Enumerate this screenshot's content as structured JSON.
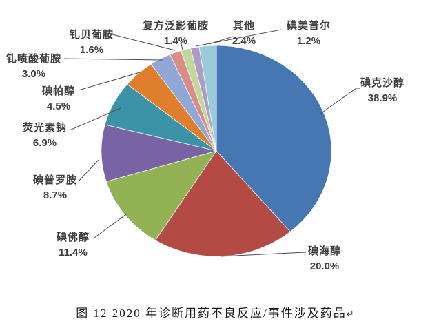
{
  "figure": {
    "caption": {
      "text": "图 12  2020 年诊断用药不良反应/事件涉及药品",
      "paragraph_mark": "↵"
    }
  },
  "chart_data": {
    "type": "pie",
    "title": "2020 年诊断用药不良反应/事件涉及药品",
    "unit": "%",
    "start_angle_deg": 0,
    "direction": "clockwise",
    "legend_position": "none",
    "label_style": "category name and percent outside pie with leader lines",
    "categories": [
      "碘克沙醇",
      "碘海醇",
      "碘佛醇",
      "碘普罗胺",
      "荧光素钠",
      "碘帕醇",
      "钆喷酸葡胺",
      "钆贝葡胺",
      "复方泛影葡胺",
      "碘美普尔",
      "其他"
    ],
    "values": [
      38.9,
      20.0,
      11.4,
      8.7,
      6.9,
      4.5,
      3.0,
      1.6,
      1.4,
      1.2,
      2.4
    ],
    "slices": [
      {
        "name": "碘克沙醇",
        "value": 38.9,
        "pct_text": "38.9%",
        "color": "#4677B2"
      },
      {
        "name": "碘海醇",
        "value": 20.0,
        "pct_text": "20.0%",
        "color": "#B34A44"
      },
      {
        "name": "碘佛醇",
        "value": 11.4,
        "pct_text": "11.4%",
        "color": "#92B254"
      },
      {
        "name": "碘普罗胺",
        "value": 8.7,
        "pct_text": "8.7%",
        "color": "#7A63A4"
      },
      {
        "name": "荧光素钠",
        "value": 6.9,
        "pct_text": "6.9%",
        "color": "#3B93A8"
      },
      {
        "name": "碘帕醇",
        "value": 4.5,
        "pct_text": "4.5%",
        "color": "#DF7F2D"
      },
      {
        "name": "钆喷酸葡胺",
        "value": 3.0,
        "pct_text": "3.0%",
        "color": "#90A7D8"
      },
      {
        "name": "钆贝葡胺",
        "value": 1.6,
        "pct_text": "1.6%",
        "color": "#D98D87"
      },
      {
        "name": "复方泛影葡胺",
        "value": 1.4,
        "pct_text": "1.4%",
        "color": "#C2D79A"
      },
      {
        "name": "碘美普尔",
        "value": 1.2,
        "pct_text": "1.2%",
        "color": "#AC9CC6"
      },
      {
        "name": "其他",
        "value": 2.4,
        "pct_text": "2.4%",
        "color": "#9ACBDB"
      }
    ],
    "leader_line_color": "#4a4a4a"
  }
}
